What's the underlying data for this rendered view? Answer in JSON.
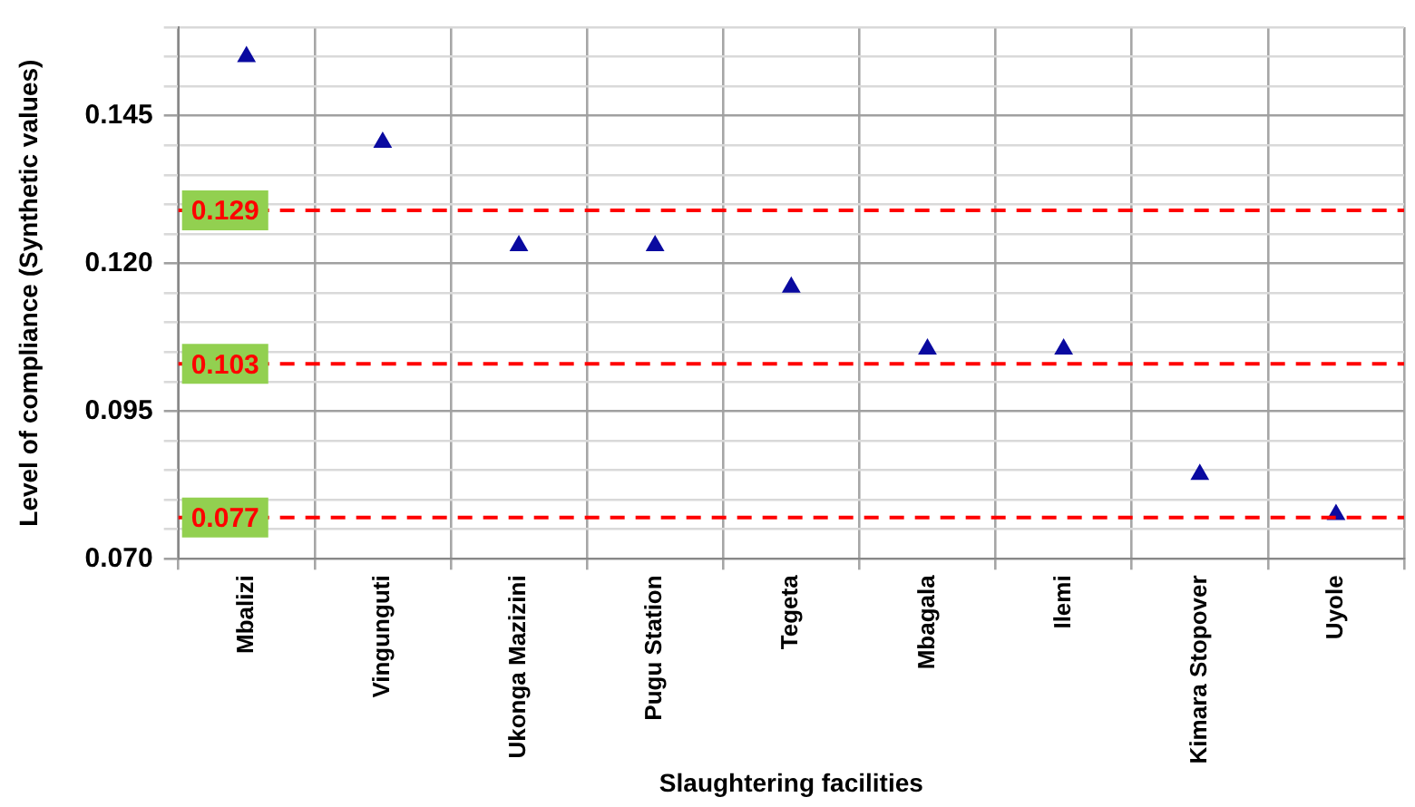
{
  "chart_data": {
    "type": "scatter",
    "xlabel": "Slaughtering facilities",
    "ylabel": "Level of compliance (Synthetic values)",
    "categories": [
      "Mbalizi",
      "Vingunguti",
      "Ukonga Mazizini",
      "Pugu Station",
      "Tegeta",
      "Mbagala",
      "Ilemi",
      "Kimara Stopover",
      "Uyole"
    ],
    "series": [
      {
        "color": "#0a0aa0",
        "values": [
          0.155,
          0.1405,
          0.123,
          0.123,
          0.116,
          0.1055,
          0.1055,
          0.0843,
          0.0775
        ]
      }
    ],
    "ylim": [
      0.07,
      0.16
    ],
    "yticks": [
      {
        "value": 0.07,
        "label": "0.070"
      },
      {
        "value": 0.075,
        "label": null
      },
      {
        "value": 0.08,
        "label": null
      },
      {
        "value": 0.085,
        "label": null
      },
      {
        "value": 0.09,
        "label": null
      },
      {
        "value": 0.095,
        "label": "0.095"
      },
      {
        "value": 0.1,
        "label": null
      },
      {
        "value": 0.105,
        "label": null
      },
      {
        "value": 0.11,
        "label": null
      },
      {
        "value": 0.115,
        "label": null
      },
      {
        "value": 0.12,
        "label": "0.120"
      },
      {
        "value": 0.125,
        "label": null
      },
      {
        "value": 0.13,
        "label": null
      },
      {
        "value": 0.135,
        "label": null
      },
      {
        "value": 0.14,
        "label": null
      },
      {
        "value": 0.145,
        "label": "0.145"
      },
      {
        "value": 0.15,
        "label": null
      },
      {
        "value": 0.155,
        "label": null
      },
      {
        "value": 0.16,
        "label": null
      }
    ],
    "ref_lines": [
      {
        "axis": "y",
        "value": 0.129,
        "label": "0.129",
        "color": "#ff0000",
        "line_style": "dashed"
      },
      {
        "axis": "y",
        "value": 0.103,
        "label": "0.103",
        "color": "#ff0000",
        "line_style": "dashed"
      },
      {
        "axis": "y",
        "value": 0.077,
        "label": "0.077",
        "color": "#ff0000",
        "line_style": "dashed"
      }
    ],
    "grid": true,
    "legend": false,
    "marker": "triangle"
  }
}
